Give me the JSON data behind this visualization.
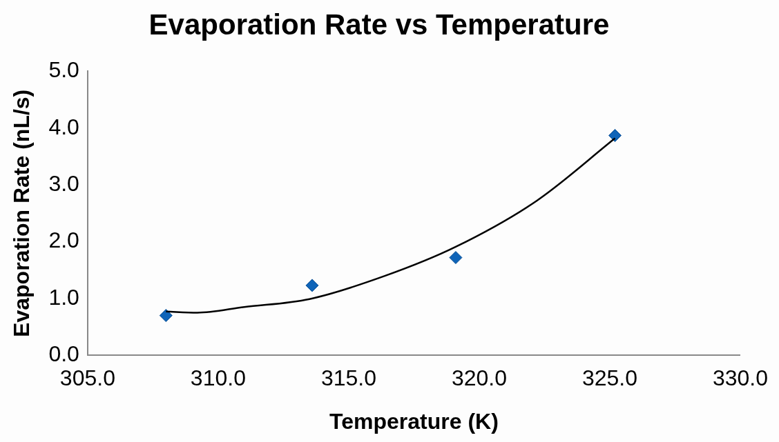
{
  "chart_data": {
    "type": "scatter",
    "title": "Evaporation Rate vs Temperature",
    "xlabel": "Temperature (K)",
    "ylabel": "Evaporation Rate (nL/s)",
    "xlim": [
      305,
      330
    ],
    "xticks": [
      {
        "value": 305,
        "label": "305.0"
      },
      {
        "value": 310,
        "label": "310.0"
      },
      {
        "value": 315,
        "label": "315.0"
      },
      {
        "value": 320,
        "label": "320.0"
      },
      {
        "value": 325,
        "label": "325.0"
      },
      {
        "value": 330,
        "label": "330.0"
      }
    ],
    "ylim": [
      0,
      5
    ],
    "yticks": [
      {
        "value": 0,
        "label": "0.0"
      },
      {
        "value": 1,
        "label": "1.0"
      },
      {
        "value": 2,
        "label": "2.0"
      },
      {
        "value": 3,
        "label": "3.0"
      },
      {
        "value": 4,
        "label": "4.0"
      },
      {
        "value": 5,
        "label": "5.0"
      }
    ],
    "grid": false,
    "legend": false,
    "marker": "diamond",
    "series": [
      {
        "color": "#0f64b8",
        "x": [
          308.0,
          313.6,
          319.1,
          325.2
        ],
        "values": [
          0.7,
          1.23,
          1.72,
          3.87
        ]
      },
      {
        "type": "line",
        "color": "#000000",
        "marker": "none",
        "x": [
          308.0,
          309.2,
          311.0,
          313.5,
          316.4,
          319.1,
          322.2,
          325.2
        ],
        "values": [
          0.77,
          0.75,
          0.85,
          0.99,
          1.4,
          1.91,
          2.72,
          3.82
        ]
      }
    ]
  }
}
